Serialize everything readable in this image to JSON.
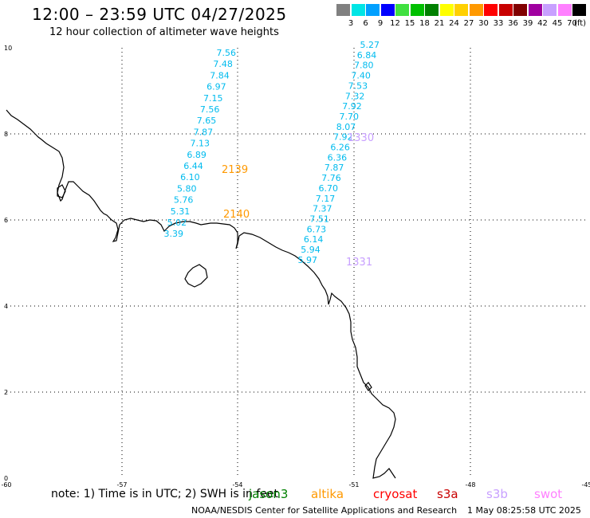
{
  "header": {
    "title": "12:00 – 23:59 UTC 04/27/2025",
    "subtitle": "12 hour collection of altimeter wave heights"
  },
  "legend": {
    "labels": [
      "3",
      "6",
      "9",
      "12",
      "15",
      "18",
      "21",
      "24",
      "27",
      "30",
      "33",
      "36",
      "39",
      "42",
      "45",
      "70"
    ],
    "unit": "(ft)",
    "colors": [
      "#808080",
      "#00e5e5",
      "#00a0ff",
      "#0000ff",
      "#40e040",
      "#00c000",
      "#008000",
      "#ffff00",
      "#ffd000",
      "#ff9900",
      "#ff0000",
      "#c80000",
      "#800000",
      "#a000a0",
      "#c8a0ff",
      "#ff80ff",
      "#000000"
    ]
  },
  "axes": {
    "x_ticks": [
      "-60",
      "-57",
      "-54",
      "-51",
      "-48",
      "-45"
    ],
    "y_ticks": [
      "10",
      "8",
      "6",
      "4",
      "2",
      "0"
    ]
  },
  "tracks": [
    {
      "color": "#00bbee",
      "values": [
        "7.56",
        "7.48",
        "7.84",
        "6.97",
        "7.15",
        "7.56",
        "7.65",
        "7.87",
        "7.13",
        "6.89",
        "6.44",
        "6.10",
        "5.80",
        "5.76",
        "5.31",
        "5.02",
        "3.39"
      ]
    },
    {
      "color": "#00bbee",
      "values": [
        "5.27",
        "6.84",
        "7.80",
        "7.40",
        "7.53",
        "7.32",
        "7.92",
        "7.70",
        "8.07",
        "7.92",
        "6.26",
        "6.36",
        "7.87",
        "7.76",
        "6.70",
        "7.17",
        "7.37",
        "7.51",
        "6.73",
        "6.14",
        "5.94",
        "5.97"
      ]
    }
  ],
  "pass_times": [
    {
      "text": "2139",
      "color": "#ff9900"
    },
    {
      "text": "2140",
      "color": "#ff9900"
    },
    {
      "text": "1330",
      "color": "#c8a0ff"
    },
    {
      "text": "1331",
      "color": "#c8a0ff"
    }
  ],
  "footer": {
    "note": "note:  1) Time is in UTC; 2) SWH is in feet",
    "credit": "NOAA/NESDIS Center for Satellite Applications and Research",
    "timestamp": "1 May 08:25:58 UTC 2025",
    "satellites": [
      {
        "name": "jason3",
        "color": "#008000"
      },
      {
        "name": "altika",
        "color": "#ff9900"
      },
      {
        "name": "cryosat",
        "color": "#ff0000"
      },
      {
        "name": "s3a",
        "color": "#c80000"
      },
      {
        "name": "s3b",
        "color": "#c8a0ff"
      },
      {
        "name": "swot",
        "color": "#ff80ff"
      }
    ]
  }
}
